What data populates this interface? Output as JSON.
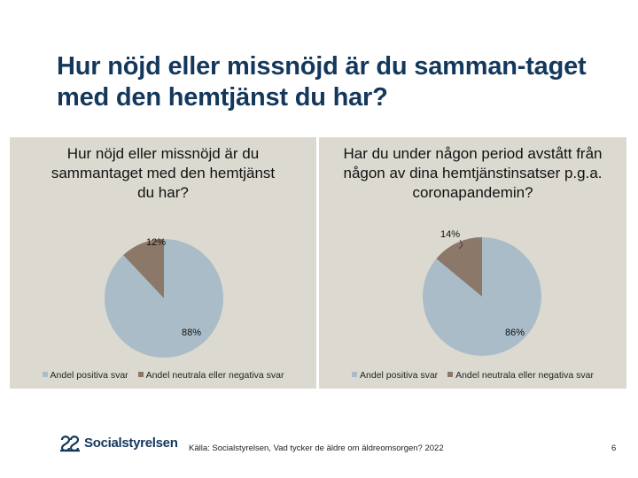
{
  "slide": {
    "title": "Hur nöjd eller missnöjd är du samman-taget med den hemtjänst du har?",
    "source": "Källa: Socialstyrelsen, Vad tycker de äldre om äldreomsorgen? 2022",
    "page_number": "6",
    "logo_text": "Socialstyrelsen"
  },
  "colors": {
    "positive": "#a9bcc8",
    "negative": "#8b7869",
    "panel_bg": "#dcdad0",
    "title": "#14385c"
  },
  "chart_data": [
    {
      "type": "pie",
      "title": "Hur nöjd eller missnöjd är du sammantaget med den hemtjänst du har?",
      "slices": [
        {
          "name": "Andel positiva svar",
          "value": 88,
          "label": "88%"
        },
        {
          "name": "Andel neutrala eller negativa svar",
          "value": 12,
          "label": "12%"
        }
      ],
      "legend_position": "bottom"
    },
    {
      "type": "pie",
      "title": "Har du under någon period avstått från någon av dina hemtjänstinsatser p.g.a. coronapandemin?",
      "slices": [
        {
          "name": "Andel positiva svar",
          "value": 86,
          "label": "86%"
        },
        {
          "name": "Andel neutrala eller negativa svar",
          "value": 14,
          "label": "14%"
        }
      ],
      "legend_position": "bottom"
    }
  ]
}
